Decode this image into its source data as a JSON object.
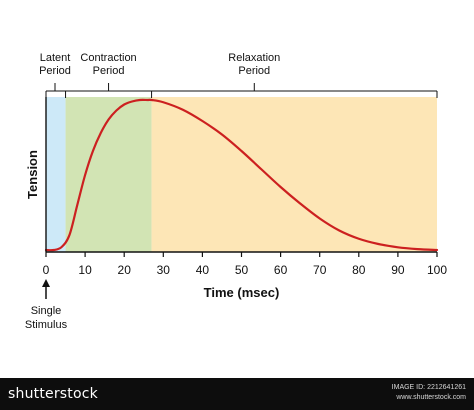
{
  "chart_data": {
    "type": "line",
    "xlabel": "Time (msec)",
    "ylabel": "Tension",
    "xlim": [
      0,
      100
    ],
    "x_ticks": [
      0,
      10,
      20,
      30,
      40,
      50,
      60,
      70,
      80,
      90,
      100
    ],
    "grid": false,
    "regions": [
      {
        "label_lines": [
          "Latent",
          "Period"
        ],
        "start": 0,
        "end": 5,
        "color": "#cde9f8"
      },
      {
        "label_lines": [
          "Contraction",
          "Period"
        ],
        "start": 5,
        "end": 27,
        "color": "#d2e4b4"
      },
      {
        "label_lines": [
          "Relaxation",
          "Period"
        ],
        "start": 27,
        "end": 100,
        "color": "#fde6b6"
      }
    ],
    "series": [
      {
        "color": "#cc2020",
        "x": [
          0,
          2,
          4,
          6,
          8,
          10,
          12,
          14,
          16,
          18,
          20,
          22,
          24,
          26,
          27,
          30,
          35,
          40,
          45,
          50,
          55,
          60,
          65,
          70,
          75,
          80,
          85,
          90,
          95,
          100
        ],
        "y": [
          0.0,
          0.0,
          0.02,
          0.1,
          0.3,
          0.5,
          0.66,
          0.78,
          0.87,
          0.93,
          0.97,
          0.99,
          1.0,
          1.0,
          1.0,
          0.985,
          0.935,
          0.86,
          0.77,
          0.66,
          0.54,
          0.42,
          0.31,
          0.21,
          0.13,
          0.075,
          0.04,
          0.018,
          0.006,
          0.0
        ]
      }
    ],
    "annotation": {
      "x": 0,
      "label_lines": [
        "Single",
        "Stimulus"
      ]
    }
  },
  "footer": {
    "brand": "shutterstock",
    "image_id": "IMAGE ID: 2212641261",
    "site": "www.shutterstock.com"
  }
}
